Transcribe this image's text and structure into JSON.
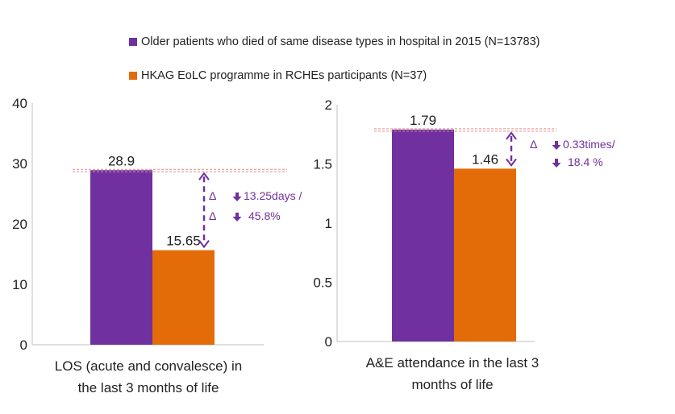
{
  "colors": {
    "purple": "#7030a0",
    "orange": "#e36c09",
    "axis": "#bfbfbf",
    "ref": "#e88a8a",
    "annot": "#7030a0"
  },
  "legend": [
    {
      "label": "Older patients who died of same disease types in hospital in 2015 (N=13783)",
      "color": "#7030a0"
    },
    {
      "label": "HKAG EoLC programme in RCHEs participants (N=37)",
      "color": "#e36c09"
    }
  ],
  "chart_data": [
    {
      "type": "bar",
      "categories": [
        "LOS (acute and convalesce) in the last 3 months of life"
      ],
      "series": [
        {
          "name": "Older patients who died of same disease types in hospital in 2015 (N=13783)",
          "values": [
            28.9
          ]
        },
        {
          "name": "HKAG EoLC programme in RCHEs participants (N=37)",
          "values": [
            15.65
          ]
        }
      ],
      "data_labels": [
        "28.9",
        "15.65"
      ],
      "ylim": [
        0,
        40
      ],
      "yticks": [
        "0",
        "10",
        "20",
        "30",
        "40"
      ],
      "xlabel_lines": [
        "LOS (acute and convalesce) in",
        "the last 3 months of life"
      ],
      "annotation": {
        "delta": "Δ",
        "line1": "13.25days /",
        "line2": "45.8%"
      }
    },
    {
      "type": "bar",
      "categories": [
        "A&E attendance in the last 3 months of life"
      ],
      "series": [
        {
          "name": "Older patients who died of same disease types in hospital in 2015 (N=13783)",
          "values": [
            1.79
          ]
        },
        {
          "name": "HKAG EoLC programme in RCHEs participants (N=37)",
          "values": [
            1.46
          ]
        }
      ],
      "data_labels": [
        "1.79",
        "1.46"
      ],
      "ylim": [
        0,
        2
      ],
      "yticks": [
        "0",
        "0.5",
        "1",
        "1.5",
        "2"
      ],
      "xlabel_lines": [
        "A&E attendance in the last 3",
        "months of life"
      ],
      "annotation": {
        "delta": "Δ",
        "line1": "0.33times/",
        "line2": "18.4 %"
      }
    }
  ]
}
